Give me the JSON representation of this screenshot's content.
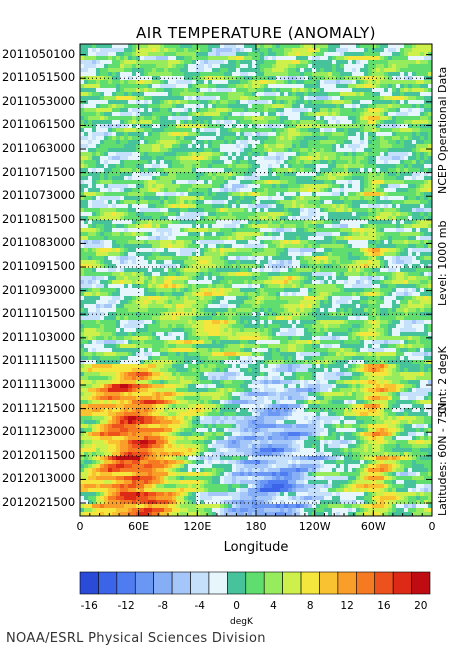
{
  "chart_data": {
    "type": "heatmap",
    "title": "AIR TEMPERATURE (ANOMALY)",
    "xlabel": "Longitude",
    "ylabel": "",
    "x_ticks": [
      "0",
      "60E",
      "120E",
      "180",
      "120W",
      "60W",
      "0"
    ],
    "x_tick_lons": [
      0,
      60,
      120,
      180,
      240,
      300,
      360
    ],
    "y_ticks": [
      "2011050100",
      "2011051500",
      "2011053000",
      "2011061500",
      "2011063000",
      "2011071500",
      "2011073000",
      "2011081500",
      "2011083000",
      "2011091500",
      "2011093000",
      "2011101500",
      "2011103000",
      "2011111500",
      "2011113000",
      "2011121500",
      "2011123000",
      "2012011500",
      "2012013000",
      "2012021500"
    ],
    "side_labels": [
      "NCEP Operational Data",
      "Level: 1000 mb",
      "Cint: 2 degK",
      "Latitudes: 60N - 75N"
    ],
    "colorbar": {
      "units": "degK",
      "tick_labels": [
        "-16",
        "-12",
        "-8",
        "-4",
        "0",
        "4",
        "8",
        "12",
        "16",
        "20"
      ],
      "levels": [
        -16,
        -14,
        -12,
        -10,
        -8,
        -6,
        -4,
        -2,
        0,
        2,
        4,
        6,
        8,
        10,
        12,
        14,
        16,
        18,
        20,
        22
      ],
      "colors": [
        "#2a4bd8",
        "#3c64e8",
        "#4f7cf0",
        "#6a96f4",
        "#86aef6",
        "#a4c6f8",
        "#c4e0fa",
        "#e6f6fc",
        "#46c39a",
        "#5fdd6e",
        "#96ec5c",
        "#cdf04a",
        "#f4e63c",
        "#f8c230",
        "#f99e28",
        "#f57a22",
        "#ee521c",
        "#dd2a16",
        "#bf0c12"
      ]
    },
    "grid": true,
    "grid_lon": [
      60,
      120,
      180,
      240,
      300
    ],
    "grid_dates": [
      "2011051500",
      "2011061500",
      "2011071500",
      "2011081500",
      "2011091500",
      "2011101500",
      "2011111500",
      "2011121500",
      "2012011500",
      "2012021500"
    ]
  },
  "footer": "NOAA/ESRL Physical Sciences Division"
}
